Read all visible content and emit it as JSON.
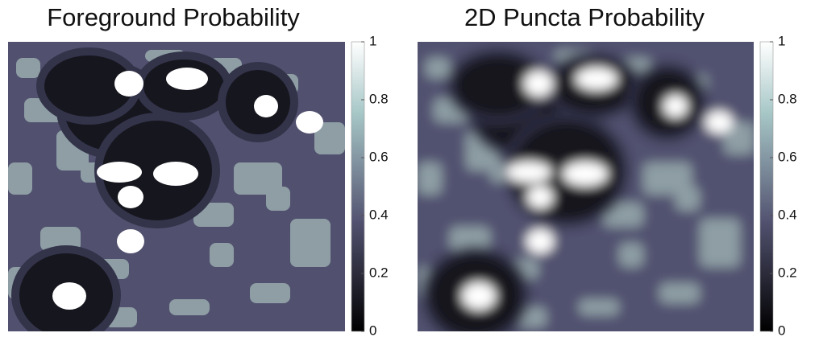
{
  "chart_data": [
    {
      "type": "heatmap",
      "title": "Foreground Probability",
      "colormap": "bone",
      "clim": [
        0,
        1
      ],
      "cticks": [
        0,
        0.2,
        0.4,
        0.6,
        0.8,
        1
      ],
      "smooth": false
    },
    {
      "type": "heatmap",
      "title": "2D Puncta Probability",
      "colormap": "bone",
      "clim": [
        0,
        1
      ],
      "cticks": [
        0,
        0.2,
        0.4,
        0.6,
        0.8,
        1
      ],
      "smooth": true
    }
  ]
}
